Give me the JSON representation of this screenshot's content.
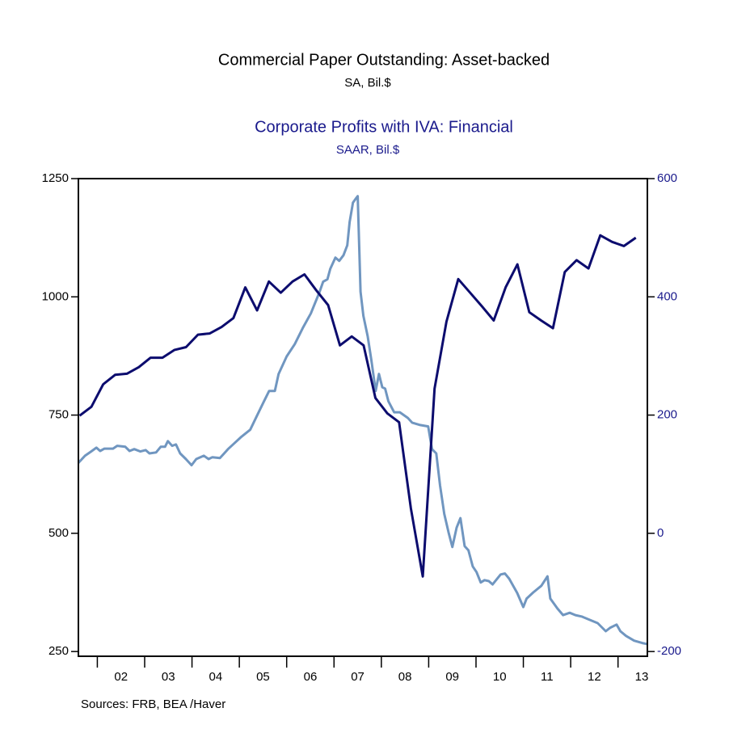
{
  "chart_data": {
    "type": "line",
    "source": "Sources:  FRB, BEA /Haver",
    "xlim": [
      2001.6,
      2013.62
    ],
    "xticks": [
      {
        "value": 2002.5,
        "label": "02"
      },
      {
        "value": 2003.5,
        "label": "03"
      },
      {
        "value": 2004.5,
        "label": "04"
      },
      {
        "value": 2005.5,
        "label": "05"
      },
      {
        "value": 2006.5,
        "label": "06"
      },
      {
        "value": 2007.5,
        "label": "07"
      },
      {
        "value": 2008.5,
        "label": "08"
      },
      {
        "value": 2009.5,
        "label": "09"
      },
      {
        "value": 2010.5,
        "label": "10"
      },
      {
        "value": 2011.5,
        "label": "11"
      },
      {
        "value": 2012.5,
        "label": "12"
      },
      {
        "value": 2013.5,
        "label": "13"
      }
    ],
    "xminorticks": [
      2002,
      2003,
      2004,
      2005,
      2006,
      2007,
      2008,
      2009,
      2010,
      2011,
      2012,
      2013
    ],
    "ylim": [
      240,
      1250
    ],
    "yticks": [
      250,
      500,
      750,
      1000,
      1250
    ],
    "y2lim": [
      -208,
      600
    ],
    "y2ticks": [
      -200,
      0,
      200,
      400,
      600
    ],
    "grid": false,
    "series": [
      {
        "name": "Commercial Paper Outstanding: Asset-backed",
        "unit": "SA, Bil.$",
        "color": "#7096c0",
        "title_color": "#000000",
        "axis": "y",
        "x": [
          2001.6,
          2001.74,
          2001.87,
          2001.98,
          2002.06,
          2002.15,
          2002.33,
          2002.42,
          2002.59,
          2002.68,
          2002.78,
          2002.91,
          2003.02,
          2003.1,
          2003.24,
          2003.34,
          2003.43,
          2003.49,
          2003.58,
          2003.66,
          2003.75,
          2003.87,
          2003.99,
          2004.09,
          2004.25,
          2004.35,
          2004.43,
          2004.59,
          2004.67,
          2004.76,
          2004.89,
          2005.03,
          2005.23,
          2005.37,
          2005.51,
          2005.63,
          2005.75,
          2005.83,
          2006.0,
          2006.17,
          2006.34,
          2006.51,
          2006.69,
          2006.77,
          2006.86,
          2006.92,
          2007.03,
          2007.11,
          2007.2,
          2007.28,
          2007.33,
          2007.4,
          2007.47,
          2007.5,
          2007.56,
          2007.62,
          2007.71,
          2007.79,
          2007.88,
          2007.95,
          2008.02,
          2008.08,
          2008.15,
          2008.27,
          2008.39,
          2008.56,
          2008.65,
          2008.82,
          2008.99,
          2009.07,
          2009.16,
          2009.24,
          2009.33,
          2009.42,
          2009.5,
          2009.59,
          2009.67,
          2009.76,
          2009.84,
          2009.93,
          2010.01,
          2010.1,
          2010.18,
          2010.27,
          2010.35,
          2010.52,
          2010.61,
          2010.7,
          2010.87,
          2011.0,
          2011.07,
          2011.21,
          2011.38,
          2011.51,
          2011.57,
          2011.72,
          2011.84,
          2011.98,
          2012.1,
          2012.23,
          2012.4,
          2012.57,
          2012.74,
          2012.83,
          2012.97,
          2013.05,
          2013.17,
          2013.34,
          2013.51,
          2013.61
        ],
        "values": [
          649,
          664,
          673,
          681,
          674,
          679,
          679,
          685,
          683,
          674,
          678,
          673,
          676,
          669,
          671,
          683,
          683,
          695,
          685,
          688,
          669,
          657,
          644,
          657,
          664,
          657,
          661,
          659,
          668,
          678,
          690,
          703,
          719,
          748,
          777,
          801,
          801,
          837,
          874,
          900,
          934,
          965,
          1009,
          1032,
          1037,
          1059,
          1083,
          1076,
          1088,
          1109,
          1158,
          1199,
          1209,
          1213,
          1011,
          960,
          917,
          866,
          801,
          837,
          809,
          806,
          779,
          756,
          756,
          744,
          734,
          729,
          726,
          678,
          669,
          601,
          541,
          502,
          471,
          512,
          532,
          473,
          464,
          430,
          418,
          396,
          401,
          399,
          392,
          413,
          415,
          404,
          374,
          344,
          362,
          375,
          389,
          409,
          362,
          341,
          327,
          332,
          327,
          324,
          317,
          310,
          293,
          300,
          307,
          293,
          283,
          273,
          268,
          266
        ]
      },
      {
        "name": "Corporate Profits with IVA: Financial",
        "unit": "SAAR, Bil.$",
        "color": "#0c0c6e",
        "title_color": "#1a1a8c",
        "axis": "y2",
        "x": [
          2001.625,
          2001.875,
          2002.125,
          2002.375,
          2002.625,
          2002.875,
          2003.125,
          2003.375,
          2003.625,
          2003.875,
          2004.125,
          2004.375,
          2004.625,
          2004.875,
          2005.125,
          2005.375,
          2005.625,
          2005.875,
          2006.125,
          2006.375,
          2006.625,
          2006.875,
          2007.125,
          2007.375,
          2007.625,
          2007.875,
          2008.125,
          2008.375,
          2008.625,
          2008.875,
          2009.125,
          2009.375,
          2009.625,
          2009.875,
          2010.125,
          2010.375,
          2010.625,
          2010.875,
          2011.125,
          2011.375,
          2011.625,
          2011.875,
          2012.125,
          2012.375,
          2012.625,
          2012.875,
          2013.125,
          2013.375
        ],
        "values": [
          199,
          214,
          252,
          268,
          270,
          281,
          297,
          297,
          310,
          315,
          336,
          338,
          349,
          364,
          416,
          377,
          426,
          407,
          426,
          438,
          411,
          386,
          318,
          333,
          318,
          229,
          203,
          188,
          42,
          -73,
          245,
          358,
          430,
          407,
          384,
          360,
          416,
          455,
          374,
          360,
          347,
          442,
          462,
          448,
          504,
          493,
          486,
          500
        ]
      }
    ]
  }
}
